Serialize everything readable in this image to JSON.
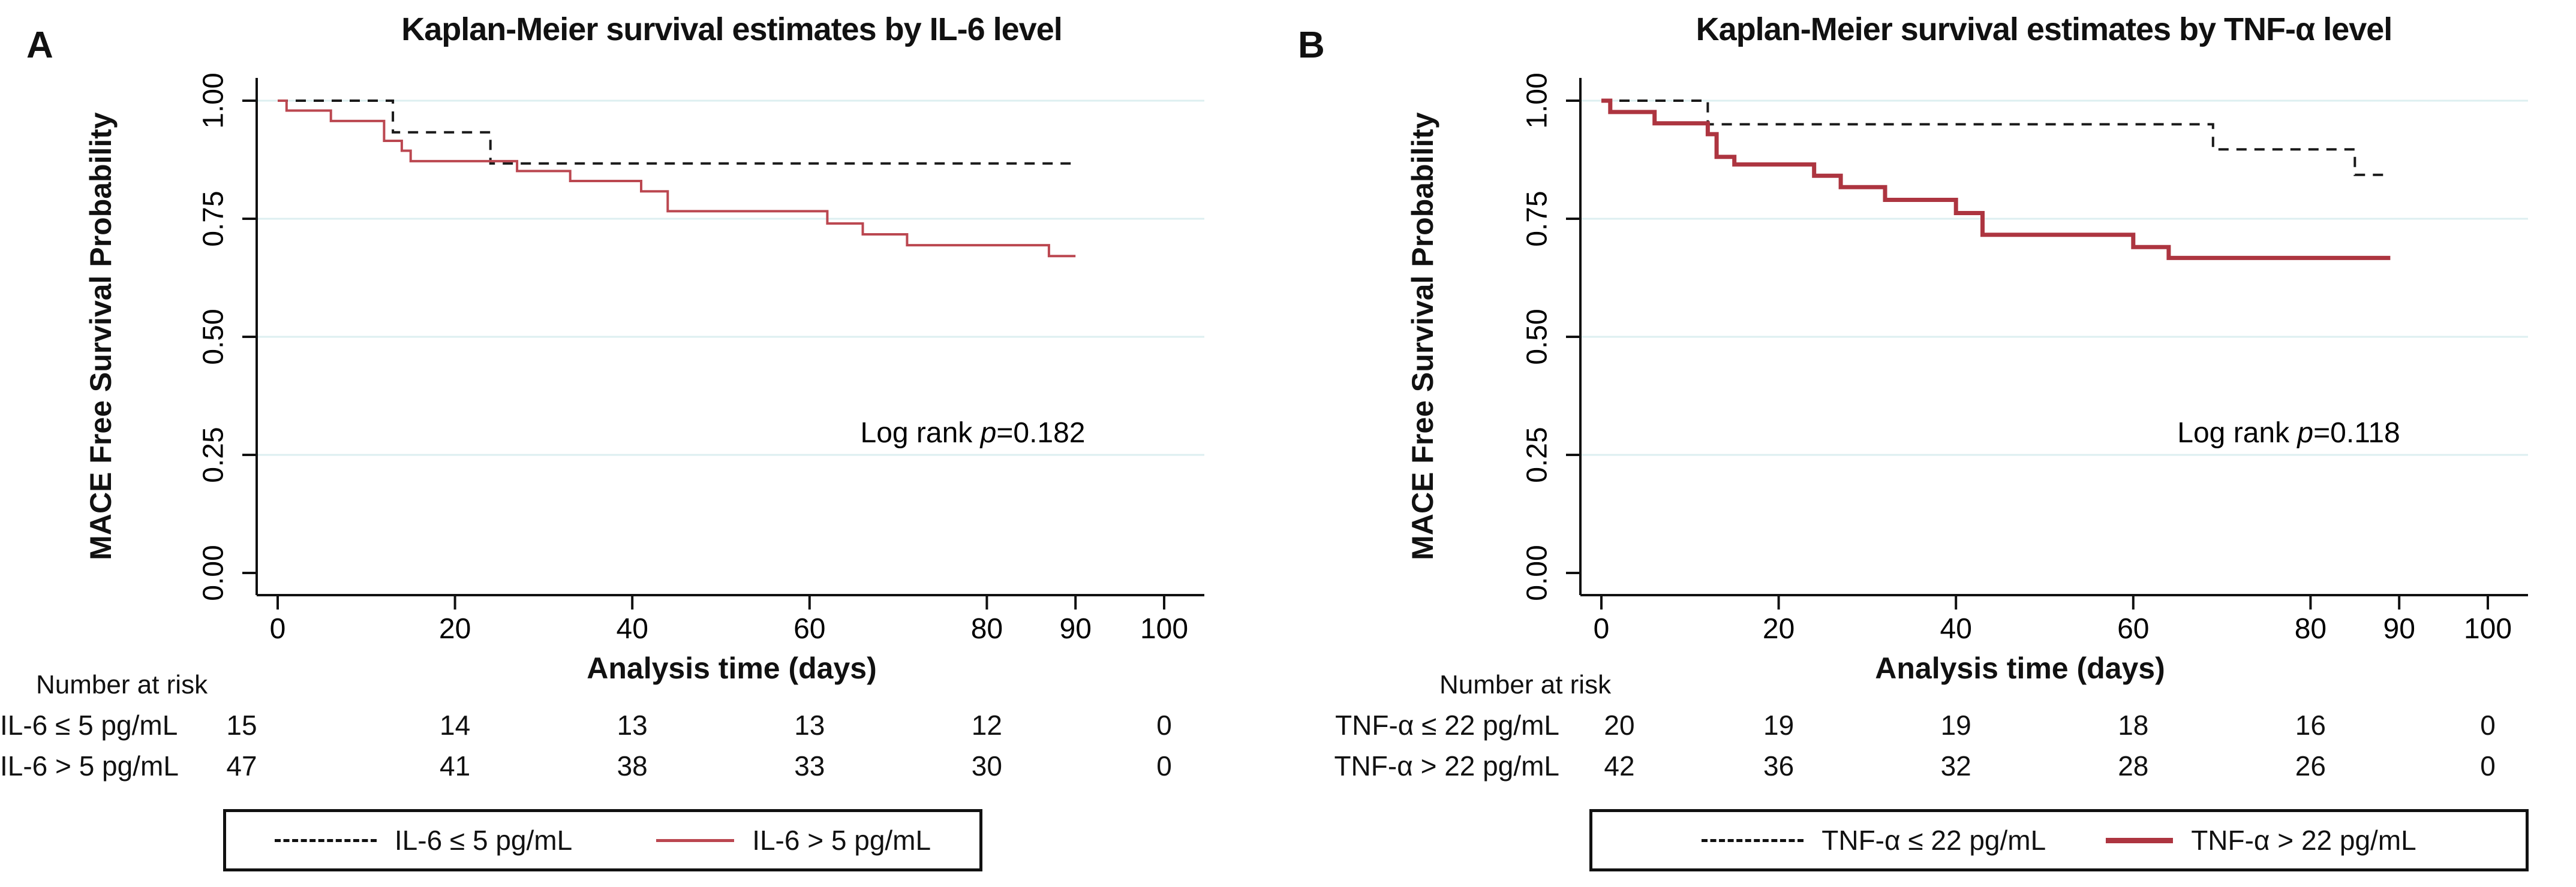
{
  "chart_data": [
    {
      "type": "line",
      "subtype": "kaplan-meier-step",
      "panel_label": "A",
      "title": "Kaplan-Meier survival estimates by IL-6 level",
      "xlabel": "Analysis time (days)",
      "ylabel": "MACE Free Survival Probability",
      "xlim": [
        0,
        100
      ],
      "ylim": [
        0,
        1
      ],
      "xticks": [
        0,
        20,
        40,
        60,
        80,
        90,
        100
      ],
      "yticks": [
        [
          "0.00",
          0
        ],
        [
          "0.25",
          0.25
        ],
        [
          "0.50",
          0.5
        ],
        [
          "0.75",
          0.75
        ],
        [
          "1.00",
          1
        ]
      ],
      "grid": "horizontal",
      "grid_color": "#ddeff0",
      "annotation": {
        "prefix": "Log rank ",
        "stat": "p",
        "value": "=0.182"
      },
      "series": [
        {
          "name": "IL-6 ≤ 5 pg/mL",
          "style": "dashed",
          "color": "#1a1a1a",
          "width": 4,
          "steps": [
            [
              0,
              1.0
            ],
            [
              13,
              0.933
            ],
            [
              24,
              0.867
            ],
            [
              90,
              0.867
            ]
          ]
        },
        {
          "name": "IL-6 > 5 pg/mL",
          "style": "solid",
          "color": "#bb4750",
          "width": 4,
          "steps": [
            [
              0,
              1.0
            ],
            [
              1,
              0.979
            ],
            [
              6,
              0.957
            ],
            [
              12,
              0.915
            ],
            [
              14,
              0.894
            ],
            [
              15,
              0.872
            ],
            [
              27,
              0.851
            ],
            [
              33,
              0.83
            ],
            [
              41,
              0.808
            ],
            [
              44,
              0.766
            ],
            [
              62,
              0.74
            ],
            [
              66,
              0.717
            ],
            [
              71,
              0.694
            ],
            [
              87,
              0.671
            ],
            [
              90,
              0.671
            ]
          ]
        }
      ],
      "risk_table": {
        "header": "Number at risk",
        "columns": [
          0,
          20,
          40,
          60,
          80,
          100
        ],
        "rows": [
          {
            "label": "IL-6 ≤ 5 pg/mL",
            "values": [
              "15",
              "14",
              "13",
              "13",
              "12",
              "0"
            ]
          },
          {
            "label": "IL-6 > 5 pg/mL",
            "values": [
              "47",
              "41",
              "38",
              "33",
              "30",
              "0"
            ]
          }
        ]
      }
    },
    {
      "type": "line",
      "subtype": "kaplan-meier-step",
      "panel_label": "B",
      "title": "Kaplan-Meier survival estimates by TNF-α level",
      "xlabel": "Analysis time (days)",
      "ylabel": "MACE Free Survival Probability",
      "xlim": [
        0,
        100
      ],
      "ylim": [
        0,
        1
      ],
      "xticks": [
        0,
        20,
        40,
        60,
        80,
        90,
        100
      ],
      "yticks": [
        [
          "0.00",
          0
        ],
        [
          "0.25",
          0.25
        ],
        [
          "0.50",
          0.5
        ],
        [
          "0.75",
          0.75
        ],
        [
          "1.00",
          1
        ]
      ],
      "grid": "horizontal",
      "grid_color": "#ddeff0",
      "annotation": {
        "prefix": "Log rank ",
        "stat": "p",
        "value": "=0.118"
      },
      "series": [
        {
          "name": "TNF-α ≤ 22 pg/mL",
          "style": "dashed",
          "color": "#1a1a1a",
          "width": 4,
          "steps": [
            [
              0,
              1.0
            ],
            [
              12,
              0.95
            ],
            [
              69,
              0.897
            ],
            [
              85,
              0.843
            ],
            [
              89,
              0.843
            ]
          ]
        },
        {
          "name": "TNF-α > 22 pg/mL",
          "style": "solid",
          "color": "#ad3540",
          "width": 7,
          "steps": [
            [
              0,
              1.0
            ],
            [
              1,
              0.976
            ],
            [
              6,
              0.952
            ],
            [
              12,
              0.929
            ],
            [
              13,
              0.881
            ],
            [
              15,
              0.865
            ],
            [
              24,
              0.841
            ],
            [
              27,
              0.817
            ],
            [
              32,
              0.79
            ],
            [
              40,
              0.762
            ],
            [
              43,
              0.716
            ],
            [
              60,
              0.69
            ],
            [
              64,
              0.667
            ],
            [
              89,
              0.667
            ]
          ]
        }
      ],
      "risk_table": {
        "header": "Number at risk",
        "columns": [
          0,
          20,
          40,
          60,
          80,
          100
        ],
        "rows": [
          {
            "label": "TNF-α ≤ 22 pg/mL",
            "values": [
              "20",
              "19",
              "19",
              "18",
              "16",
              "0"
            ]
          },
          {
            "label": "TNF-α > 22 pg/mL",
            "values": [
              "42",
              "36",
              "32",
              "28",
              "26",
              "0"
            ]
          }
        ]
      }
    }
  ]
}
